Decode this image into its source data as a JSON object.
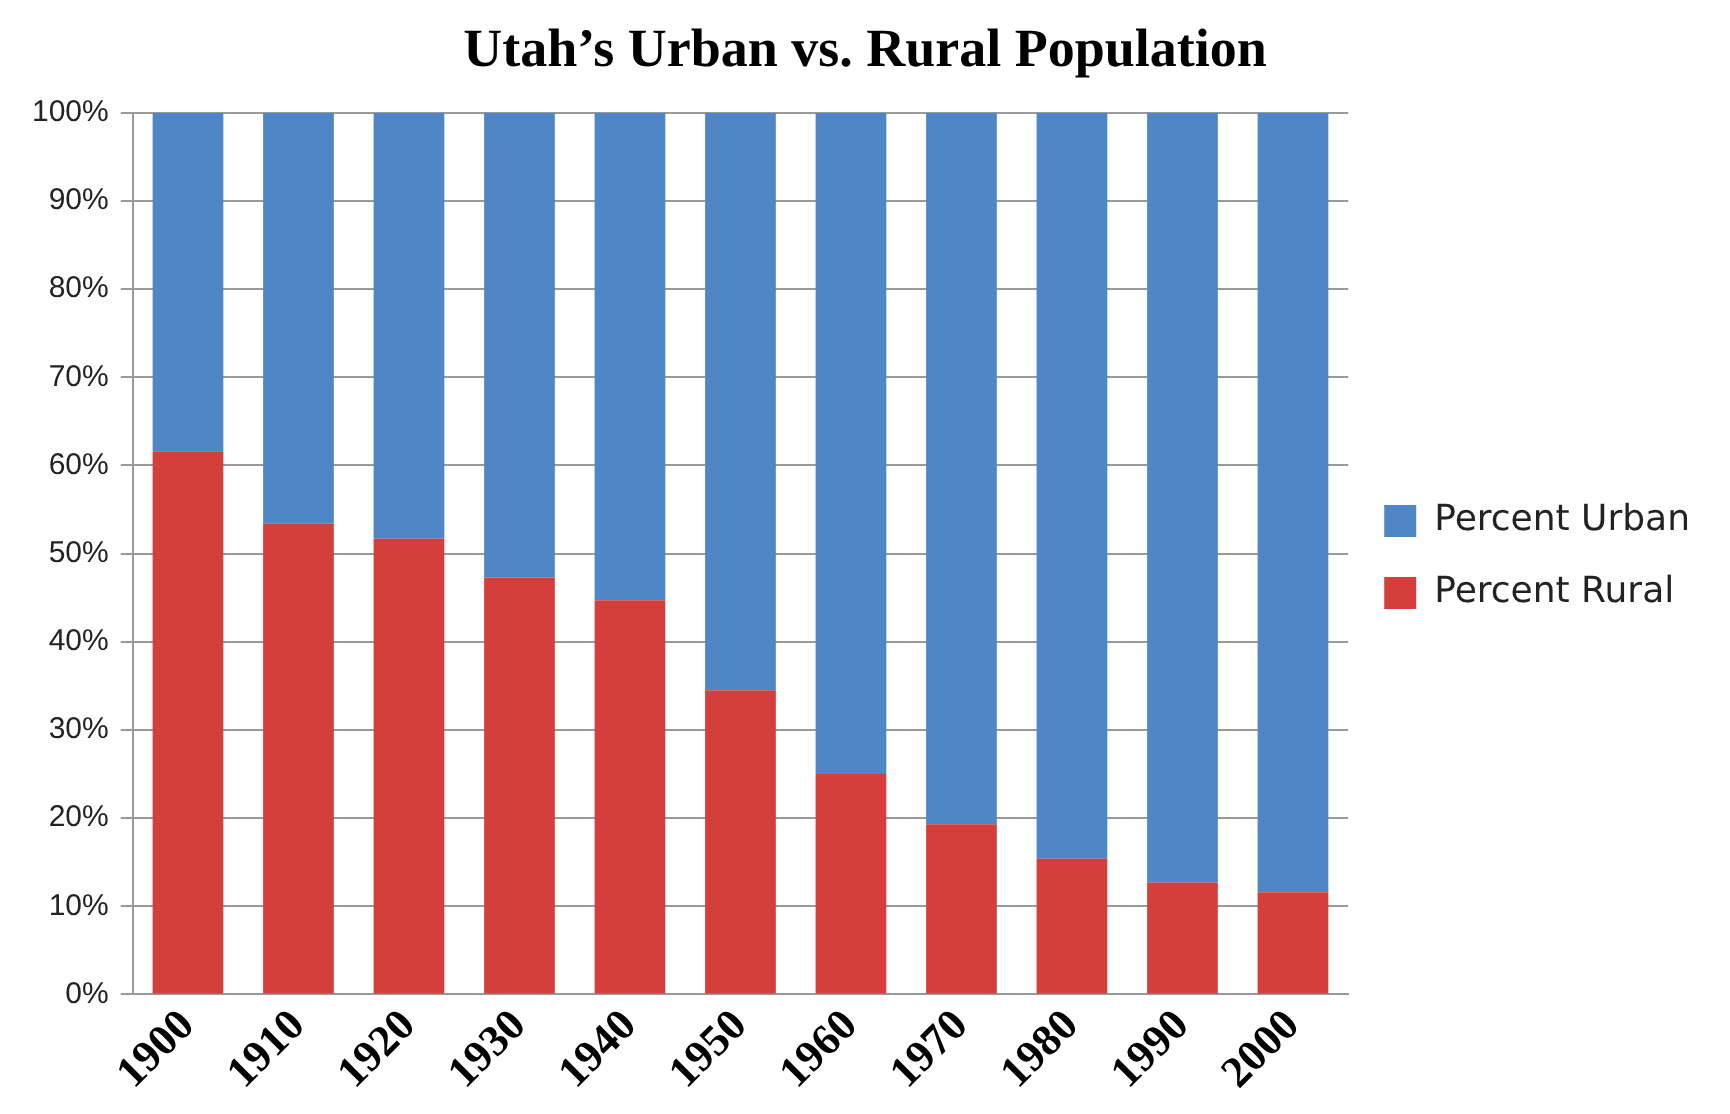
{
  "chart_data": {
    "type": "bar",
    "title": "Utah’s Urban vs. Rural Population",
    "categories": [
      "1900",
      "1910",
      "1920",
      "1930",
      "1940",
      "1950",
      "1960",
      "1970",
      "1980",
      "1990",
      "2000"
    ],
    "stacked": true,
    "series": [
      {
        "name": "Percent Rural",
        "color": "#d43f3c",
        "values": [
          61.6,
          53.4,
          51.7,
          47.3,
          44.7,
          34.5,
          25.0,
          19.3,
          15.4,
          12.7,
          11.6
        ]
      },
      {
        "name": "Percent Urban",
        "color": "#4f86c6",
        "values": [
          38.4,
          46.6,
          48.3,
          52.7,
          55.3,
          65.5,
          75.0,
          80.7,
          84.6,
          87.3,
          88.4
        ]
      }
    ],
    "ylim": [
      0,
      100
    ],
    "yticks": [
      {
        "value": 0,
        "label": "0%"
      },
      {
        "value": 10,
        "label": "10%"
      },
      {
        "value": 20,
        "label": "20%"
      },
      {
        "value": 30,
        "label": "30%"
      },
      {
        "value": 40,
        "label": "40%"
      },
      {
        "value": 50,
        "label": "50%"
      },
      {
        "value": 60,
        "label": "60%"
      },
      {
        "value": 70,
        "label": "70%"
      },
      {
        "value": 80,
        "label": "80%"
      },
      {
        "value": 90,
        "label": "90%"
      },
      {
        "value": 100,
        "label": "100%"
      }
    ],
    "grid": "y",
    "legend": "right"
  }
}
